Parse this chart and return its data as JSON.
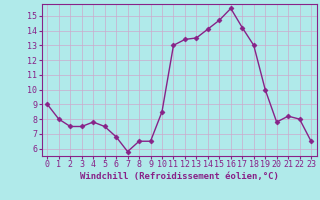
{
  "x": [
    0,
    1,
    2,
    3,
    4,
    5,
    6,
    7,
    8,
    9,
    10,
    11,
    12,
    13,
    14,
    15,
    16,
    17,
    18,
    19,
    20,
    21,
    22,
    23
  ],
  "y": [
    9.0,
    8.0,
    7.5,
    7.5,
    7.8,
    7.5,
    6.8,
    5.8,
    6.5,
    6.5,
    8.5,
    13.0,
    13.4,
    13.5,
    14.1,
    14.7,
    15.5,
    14.2,
    13.0,
    10.0,
    7.8,
    8.2,
    8.0,
    6.5
  ],
  "line_color": "#882288",
  "marker": "D",
  "marker_size": 2.5,
  "line_width": 1.0,
  "bg_color": "#b0eaea",
  "grid_color": "#ccaacc",
  "xlabel": "Windchill (Refroidissement éolien,°C)",
  "xlabel_fontsize": 6.5,
  "xlabel_color": "#882288",
  "ylabel_ticks": [
    6,
    7,
    8,
    9,
    10,
    11,
    12,
    13,
    14,
    15
  ],
  "xlim": [
    -0.5,
    23.5
  ],
  "ylim": [
    5.5,
    15.8
  ],
  "tick_fontsize": 6.0,
  "tick_color": "#882288",
  "spine_color": "#882288"
}
